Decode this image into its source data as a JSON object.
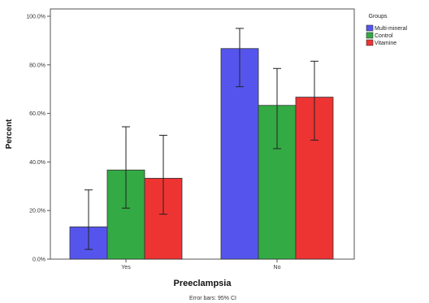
{
  "chart_data": {
    "type": "bar",
    "xlabel": "Preeclampsia",
    "ylabel": "Percent",
    "categories": [
      "Yes",
      "No"
    ],
    "series": [
      {
        "name": "Multi-mineral",
        "color": "#5555ee",
        "values": [
          13.3,
          86.7
        ],
        "ci_low": [
          4.0,
          71.0
        ],
        "ci_high": [
          28.5,
          95.0
        ]
      },
      {
        "name": "Control",
        "color": "#33aa44",
        "values": [
          36.7,
          63.3
        ],
        "ci_low": [
          21.0,
          45.5
        ],
        "ci_high": [
          54.5,
          78.5
        ]
      },
      {
        "name": "Vitamine",
        "color": "#ee3333",
        "values": [
          33.3,
          66.7
        ],
        "ci_low": [
          18.5,
          49.0
        ],
        "ci_high": [
          51.0,
          81.5
        ]
      }
    ],
    "ylim": [
      0,
      100
    ],
    "yticks": [
      "0.0%",
      "20.0%",
      "40.0%",
      "60.0%",
      "80.0%",
      "100.0%"
    ],
    "legend_title": "Groups",
    "legend_position": "right",
    "footnote": "Error bars: 95% CI",
    "grid": false
  }
}
